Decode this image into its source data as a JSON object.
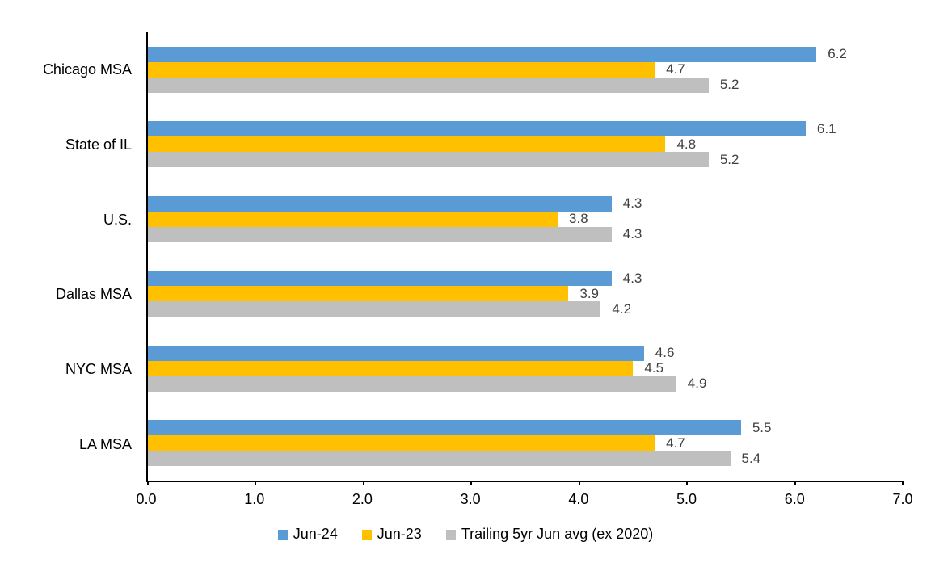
{
  "chart_data": {
    "type": "bar",
    "orientation": "horizontal",
    "title": "",
    "xlabel": "",
    "ylabel": "",
    "grid": false,
    "legend_position": "bottom",
    "xlim": [
      0.0,
      7.0
    ],
    "x_tick_labels": [
      "0.0",
      "1.0",
      "2.0",
      "3.0",
      "4.0",
      "5.0",
      "6.0",
      "7.0"
    ],
    "categories": [
      "Chicago MSA",
      "State of IL",
      "U.S.",
      "Dallas MSA",
      "NYC MSA",
      "LA MSA"
    ],
    "series": [
      {
        "name": "Jun-24",
        "color": "#5B9BD5",
        "values": [
          6.2,
          6.1,
          4.3,
          4.3,
          4.6,
          5.5
        ]
      },
      {
        "name": "Jun-23",
        "color": "#FFC000",
        "values": [
          4.7,
          4.8,
          3.8,
          3.9,
          4.5,
          4.7
        ]
      },
      {
        "name": "Trailing 5yr Jun avg (ex 2020)",
        "color": "#BFBFBF",
        "values": [
          5.2,
          5.2,
          4.3,
          4.2,
          4.9,
          5.4
        ]
      }
    ],
    "data_label_color": "#404040",
    "axis_color": "#000000",
    "data_label_decimals": 1
  }
}
